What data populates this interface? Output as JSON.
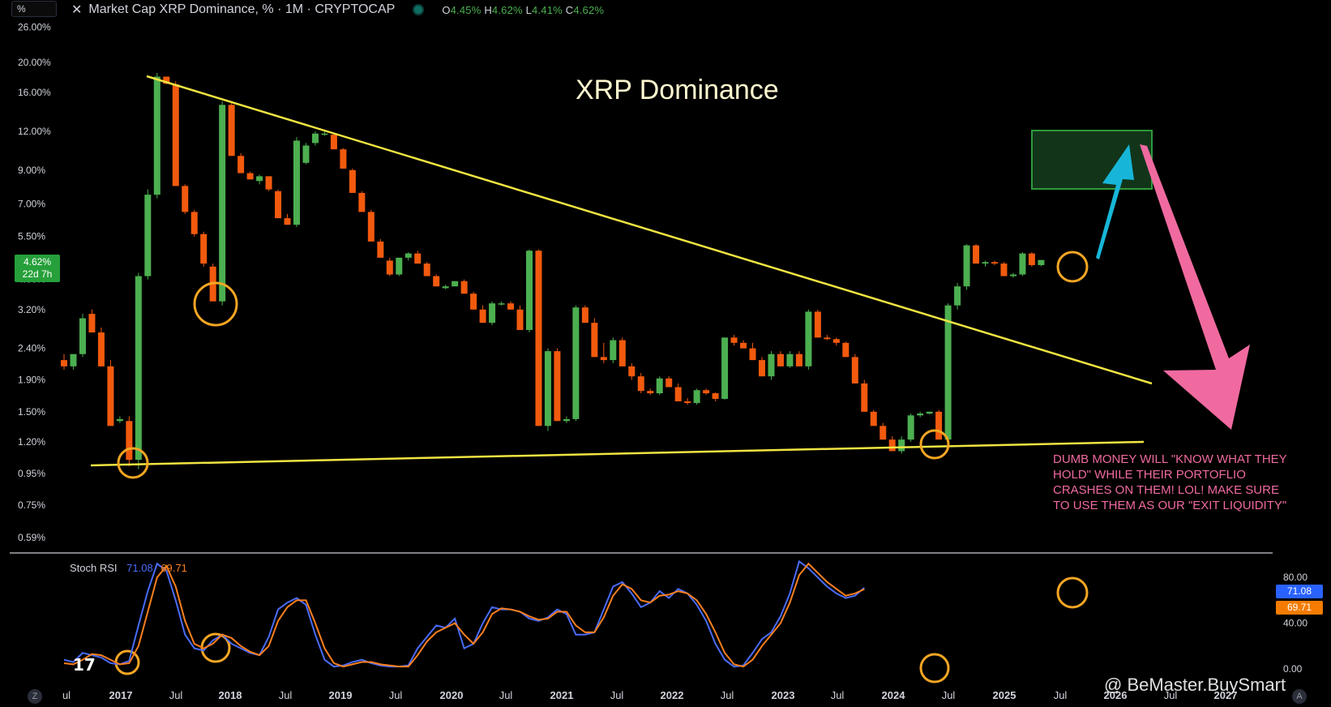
{
  "header": {
    "scale_box": "%",
    "symbol_title": "Market Cap XRP Dominance, % · 1M · CRYPTOCAP",
    "ohlc": {
      "o_label": "O",
      "o": "4.45%",
      "h_label": "H",
      "h": "4.62%",
      "l_label": "L",
      "l": "4.41%",
      "c_label": "C",
      "c": "4.62%"
    }
  },
  "annotations": {
    "big_title": "XRP Dominance",
    "note": "DUMB MONEY WILL \"KNOW WHAT THEY HOLD\" WHILE THEIR PORTOFLIO CRASHES ON THEM! LOL! MAKE SURE TO USE THEM AS OUR \"EXIT LIQUIDITY\"",
    "watermark": "@ BeMaster.BuySmart",
    "tv_logo": "17",
    "z_button": "Z",
    "a_button": "A"
  },
  "price_badge": {
    "value": "4.62%",
    "countdown": "22d 7h"
  },
  "rsi": {
    "name": "Stoch RSI",
    "k": "71.08",
    "d": "69.71"
  },
  "colors": {
    "up": "#4caf50",
    "down": "#f25a0e",
    "trendline": "#f0e442",
    "circle": "#f5a623",
    "target_box": "#2e9a3a",
    "up_arrow": "#17b6d8",
    "down_arrow": "#f06aa0",
    "k_line": "#4a6cf7",
    "d_line": "#f97f1f",
    "grid_text": "#d1d4dc"
  },
  "chart_data": [
    {
      "type": "candlestick",
      "title": "XRP Dominance",
      "y_scale": "log",
      "ylim": [
        0.55,
        28
      ],
      "y_ticks": [
        "26.00%",
        "20.00%",
        "16.00%",
        "12.00%",
        "9.00%",
        "7.00%",
        "5.50%",
        "4.00%",
        "3.20%",
        "2.40%",
        "1.90%",
        "1.50%",
        "1.20%",
        "0.95%",
        "0.75%",
        "0.59%"
      ],
      "x_ticks": [
        "ul",
        "2017",
        "Jul",
        "2018",
        "Jul",
        "2019",
        "Jul",
        "2020",
        "Jul",
        "2021",
        "Jul",
        "2022",
        "Jul",
        "2023",
        "Jul",
        "2024",
        "Jul",
        "2025",
        "Jul",
        "2026",
        "Jul",
        "2027"
      ],
      "start_month": "2016-05",
      "candles": [
        [
          2.2,
          2.3,
          2.05,
          2.1
        ],
        [
          2.1,
          2.3,
          2.05,
          2.3
        ],
        [
          2.3,
          3.1,
          2.25,
          3.0
        ],
        [
          3.1,
          3.2,
          2.7,
          2.7
        ],
        [
          2.7,
          2.8,
          2.1,
          2.1
        ],
        [
          2.1,
          2.2,
          1.35,
          1.35
        ],
        [
          1.4,
          1.45,
          1.38,
          1.42
        ],
        [
          1.4,
          1.45,
          1.0,
          1.05
        ],
        [
          1.05,
          4.2,
          0.98,
          4.1
        ],
        [
          4.1,
          7.8,
          4.0,
          7.5
        ],
        [
          7.5,
          18.5,
          7.3,
          18.0
        ],
        [
          18.0,
          18.0,
          17.0,
          17.1
        ],
        [
          17.0,
          17.4,
          8.0,
          8.0
        ],
        [
          8.0,
          8.1,
          6.5,
          6.6
        ],
        [
          6.6,
          6.7,
          5.5,
          5.6
        ],
        [
          5.6,
          5.7,
          4.4,
          4.5
        ],
        [
          4.4,
          4.5,
          3.4,
          3.4
        ],
        [
          3.4,
          15.0,
          3.3,
          14.6
        ],
        [
          14.6,
          14.8,
          10.0,
          10.0
        ],
        [
          10.0,
          10.2,
          8.8,
          8.8
        ],
        [
          8.8,
          8.9,
          8.4,
          8.4
        ],
        [
          8.3,
          8.7,
          8.1,
          8.6
        ],
        [
          8.6,
          8.6,
          7.7,
          7.8
        ],
        [
          7.7,
          7.8,
          6.3,
          6.3
        ],
        [
          6.3,
          6.5,
          6.0,
          6.0
        ],
        [
          6.0,
          11.5,
          5.9,
          11.2
        ],
        [
          9.5,
          11.0,
          9.4,
          10.8
        ],
        [
          11.0,
          12.0,
          10.8,
          11.8
        ],
        [
          11.8,
          12.0,
          11.6,
          11.8
        ],
        [
          11.7,
          11.8,
          10.5,
          10.5
        ],
        [
          10.5,
          10.6,
          9.1,
          9.1
        ],
        [
          9.0,
          9.1,
          7.6,
          7.6
        ],
        [
          7.6,
          7.7,
          6.6,
          6.6
        ],
        [
          6.6,
          6.7,
          5.3,
          5.3
        ],
        [
          5.3,
          5.4,
          4.7,
          4.7
        ],
        [
          4.6,
          4.7,
          4.1,
          4.15
        ],
        [
          4.15,
          4.7,
          4.1,
          4.7
        ],
        [
          4.7,
          4.9,
          4.6,
          4.85
        ],
        [
          4.85,
          4.95,
          4.5,
          4.5
        ],
        [
          4.5,
          4.55,
          4.1,
          4.1
        ],
        [
          4.1,
          4.15,
          3.8,
          3.8
        ],
        [
          3.75,
          3.85,
          3.72,
          3.8
        ],
        [
          3.8,
          3.95,
          3.8,
          3.95
        ],
        [
          3.95,
          4.0,
          3.6,
          3.6
        ],
        [
          3.6,
          3.65,
          3.2,
          3.2
        ],
        [
          3.2,
          3.3,
          2.9,
          2.9
        ],
        [
          2.9,
          3.4,
          2.85,
          3.35
        ],
        [
          3.35,
          3.4,
          3.3,
          3.35
        ],
        [
          3.35,
          3.4,
          3.2,
          3.2
        ],
        [
          3.2,
          3.3,
          2.75,
          2.75
        ],
        [
          2.75,
          5.0,
          2.7,
          4.95
        ],
        [
          4.95,
          5.0,
          1.35,
          1.35
        ],
        [
          1.35,
          2.4,
          1.3,
          2.35
        ],
        [
          2.35,
          2.4,
          1.4,
          1.4
        ],
        [
          1.4,
          1.45,
          1.38,
          1.42
        ],
        [
          1.42,
          3.3,
          1.4,
          3.25
        ],
        [
          3.25,
          3.3,
          2.9,
          2.9
        ],
        [
          2.9,
          3.0,
          2.25,
          2.25
        ],
        [
          2.25,
          2.5,
          2.15,
          2.2
        ],
        [
          2.2,
          2.6,
          2.15,
          2.55
        ],
        [
          2.55,
          2.6,
          2.1,
          2.1
        ],
        [
          2.1,
          2.15,
          1.9,
          1.95
        ],
        [
          1.95,
          2.0,
          1.72,
          1.75
        ],
        [
          1.75,
          1.78,
          1.7,
          1.72
        ],
        [
          1.72,
          1.95,
          1.7,
          1.92
        ],
        [
          1.92,
          1.95,
          1.8,
          1.8
        ],
        [
          1.8,
          1.85,
          1.62,
          1.62
        ],
        [
          1.62,
          1.66,
          1.58,
          1.6
        ],
        [
          1.6,
          1.78,
          1.58,
          1.76
        ],
        [
          1.76,
          1.78,
          1.7,
          1.72
        ],
        [
          1.72,
          1.73,
          1.62,
          1.65
        ],
        [
          1.65,
          2.6,
          1.64,
          2.6
        ],
        [
          2.6,
          2.65,
          2.45,
          2.5
        ],
        [
          2.5,
          2.55,
          2.4,
          2.4
        ],
        [
          2.4,
          2.5,
          2.2,
          2.2
        ],
        [
          2.2,
          2.25,
          1.95,
          1.95
        ],
        [
          1.95,
          2.35,
          1.9,
          2.3
        ],
        [
          2.3,
          2.35,
          2.1,
          2.1
        ],
        [
          2.1,
          2.35,
          2.08,
          2.3
        ],
        [
          2.3,
          2.35,
          2.1,
          2.1
        ],
        [
          2.1,
          3.2,
          2.05,
          3.15
        ],
        [
          3.15,
          3.2,
          2.6,
          2.6
        ],
        [
          2.6,
          2.65,
          2.55,
          2.57
        ],
        [
          2.57,
          2.6,
          2.45,
          2.5
        ],
        [
          2.5,
          2.52,
          2.25,
          2.25
        ],
        [
          2.25,
          2.3,
          1.85,
          1.85
        ],
        [
          1.85,
          1.9,
          1.5,
          1.5
        ],
        [
          1.5,
          1.52,
          1.35,
          1.35
        ],
        [
          1.35,
          1.38,
          1.22,
          1.22
        ],
        [
          1.22,
          1.25,
          1.12,
          1.12
        ],
        [
          1.12,
          1.25,
          1.1,
          1.22
        ],
        [
          1.22,
          1.48,
          1.2,
          1.46
        ],
        [
          1.46,
          1.5,
          1.44,
          1.48
        ],
        [
          1.48,
          1.5,
          1.47,
          1.5
        ],
        [
          1.5,
          1.52,
          1.22,
          1.22
        ],
        [
          1.22,
          3.35,
          1.2,
          3.3
        ],
        [
          3.3,
          3.9,
          3.2,
          3.8
        ],
        [
          3.8,
          5.2,
          3.7,
          5.15
        ],
        [
          5.15,
          5.2,
          4.5,
          4.5
        ],
        [
          4.5,
          4.6,
          4.4,
          4.55
        ],
        [
          4.55,
          4.6,
          4.45,
          4.5
        ],
        [
          4.5,
          4.55,
          4.1,
          4.1
        ],
        [
          4.1,
          4.2,
          4.05,
          4.15
        ],
        [
          4.15,
          4.9,
          4.1,
          4.85
        ],
        [
          4.85,
          4.9,
          4.4,
          4.45
        ],
        [
          4.45,
          4.62,
          4.41,
          4.62
        ]
      ]
    },
    {
      "type": "line",
      "title": "Stoch RSI",
      "ylim": [
        0,
        100
      ],
      "y_ticks": [
        "80.00",
        "40.00",
        "0.00"
      ],
      "series": [
        {
          "name": "71.08",
          "values": [
            8,
            6,
            14,
            12,
            10,
            5,
            4,
            7,
            38,
            68,
            92,
            86,
            60,
            30,
            18,
            16,
            25,
            30,
            22,
            18,
            14,
            12,
            28,
            52,
            58,
            62,
            56,
            30,
            8,
            2,
            3,
            6,
            8,
            5,
            3,
            2,
            2,
            3,
            18,
            28,
            38,
            36,
            44,
            18,
            22,
            40,
            54,
            52,
            52,
            50,
            44,
            42,
            45,
            52,
            48,
            30,
            30,
            32,
            52,
            72,
            76,
            66,
            54,
            58,
            68,
            62,
            70,
            66,
            56,
            42,
            22,
            8,
            2,
            3,
            14,
            26,
            32,
            46,
            66,
            94,
            88,
            80,
            72,
            66,
            62,
            64,
            71
          ]
        },
        {
          "name": "69.71",
          "values": [
            5,
            4,
            8,
            13,
            12,
            8,
            4,
            5,
            20,
            50,
            80,
            90,
            72,
            42,
            22,
            18,
            22,
            30,
            27,
            20,
            15,
            12,
            20,
            42,
            54,
            60,
            60,
            40,
            18,
            5,
            2,
            4,
            6,
            6,
            4,
            3,
            2,
            2,
            12,
            24,
            32,
            36,
            40,
            30,
            22,
            32,
            48,
            53,
            52,
            50,
            46,
            43,
            44,
            50,
            50,
            38,
            32,
            32,
            45,
            64,
            74,
            70,
            60,
            58,
            64,
            65,
            68,
            66,
            60,
            48,
            32,
            14,
            4,
            2,
            8,
            20,
            30,
            40,
            58,
            82,
            92,
            84,
            76,
            70,
            64,
            66,
            69.71
          ]
        }
      ]
    }
  ]
}
